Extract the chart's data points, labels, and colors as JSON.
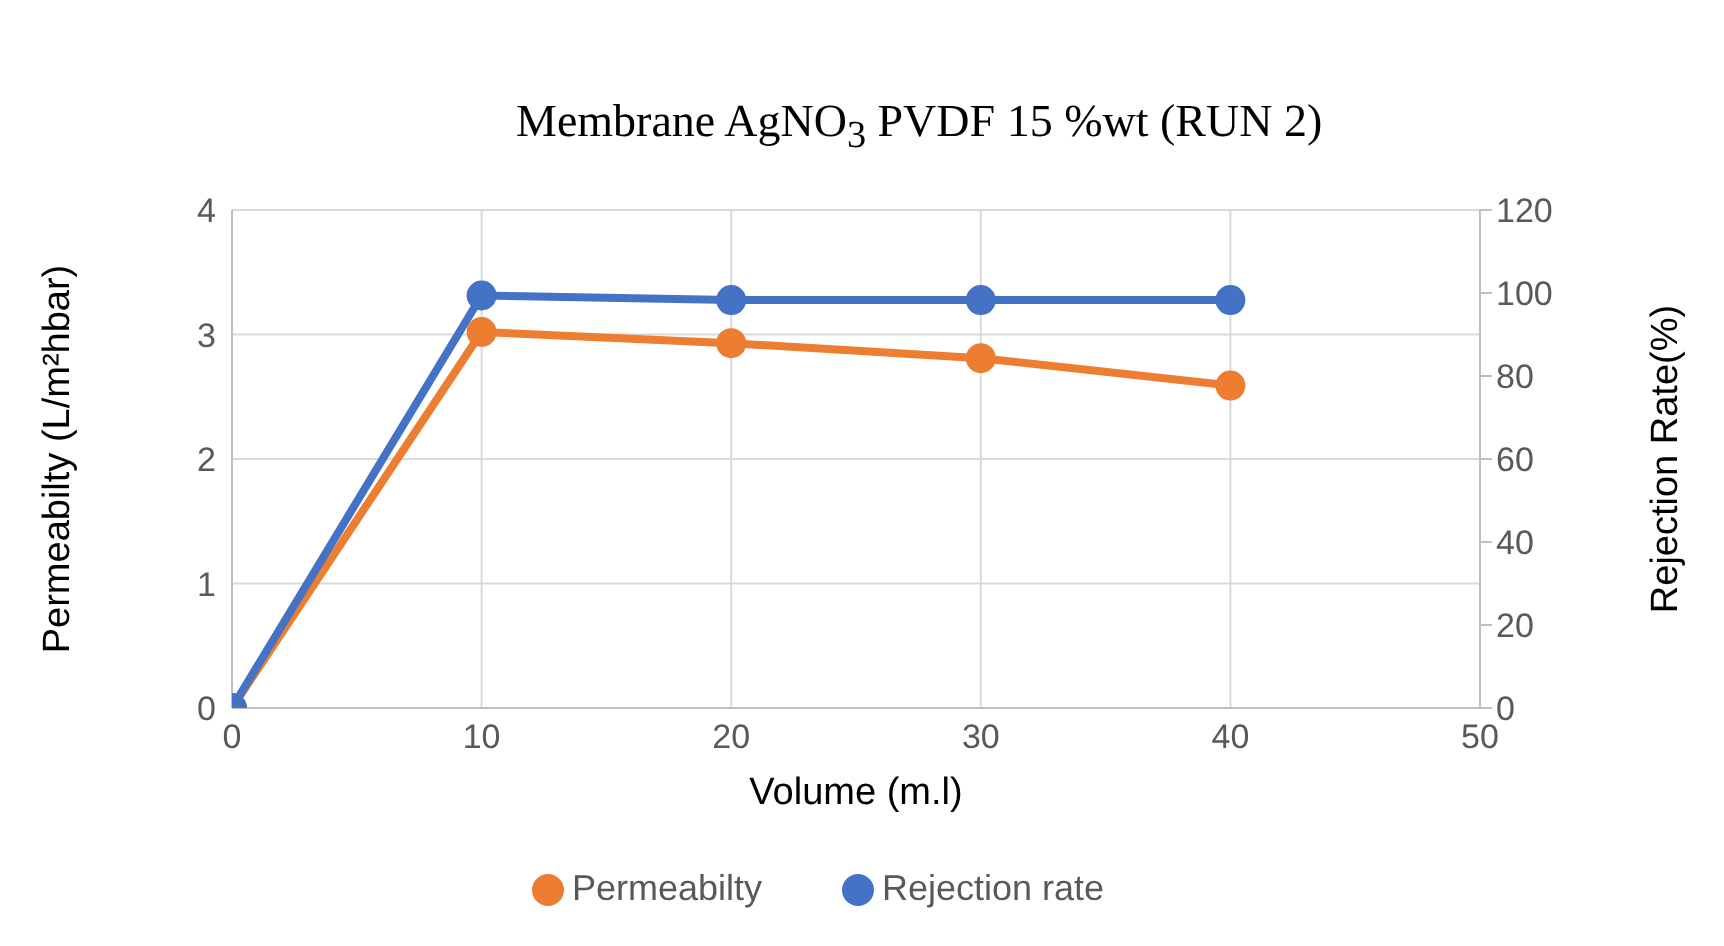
{
  "chart_data": {
    "type": "line",
    "title": "Membrane AgNO$_{3}$ PVDF 15 %wt (RUN 2)",
    "xlabel": "Volume (m.l)",
    "ylabel": "Permeabilty (L/m²hbar)",
    "y2label": "Rejection Rate(%)",
    "x": [
      0,
      10,
      20,
      30,
      40
    ],
    "series": [
      {
        "name": "Permeabilty",
        "color": "#ed7d31",
        "values": [
          0,
          3.02,
          2.93,
          2.81,
          2.59
        ]
      },
      {
        "name": "Rejection rate",
        "color": "#4472c4",
        "axis": "y2",
        "values": [
          0,
          99.4,
          98.3,
          98.3,
          98.3
        ]
      }
    ],
    "xlim": [
      0,
      50
    ],
    "xticks": [
      0,
      10,
      20,
      30,
      40,
      50
    ],
    "ylim": [
      0,
      4
    ],
    "yticks": [
      0,
      1,
      2,
      3,
      4
    ],
    "y2lim": [
      0,
      120
    ],
    "y2ticks": [
      0,
      20,
      40,
      60,
      80,
      100,
      120
    ],
    "grid": true,
    "legend": "bottom",
    "marker": "circle",
    "line_style": "solid"
  }
}
